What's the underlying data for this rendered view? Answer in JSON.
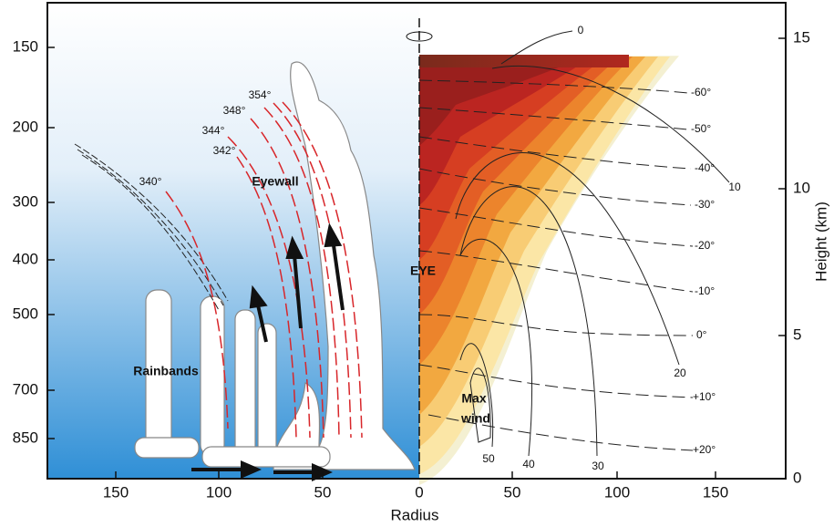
{
  "left_axis": {
    "ticks": [
      "150",
      "200",
      "300",
      "400",
      "500",
      "700",
      "850"
    ]
  },
  "right_axis": {
    "label": "Height (km)",
    "ticks": [
      "15",
      "10",
      "5",
      "0"
    ]
  },
  "x_axis": {
    "label": "Radius",
    "ticks": [
      "150",
      "100",
      "50",
      "0",
      "50",
      "100",
      "150"
    ]
  },
  "theta_labels": [
    "340°",
    "342°",
    "344°",
    "348°",
    "354°"
  ],
  "temperature_labels": [
    "-60°",
    "-50°",
    "-40°",
    "-30°",
    "-20°",
    "-10°",
    "0°",
    "+10°",
    "+20°"
  ],
  "wind_labels": [
    "0",
    "10",
    "20",
    "30",
    "40",
    "50"
  ],
  "annotations": {
    "eyewall": "Eyewall",
    "eye": "EYE",
    "rainbands": "Rainbands",
    "max_wind": [
      "Max",
      "wind"
    ]
  }
}
